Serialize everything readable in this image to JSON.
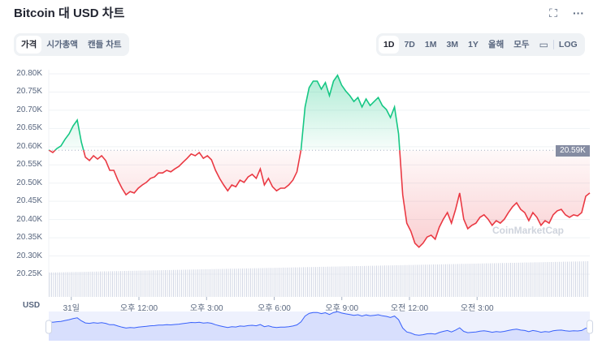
{
  "header": {
    "title": "Bitcoin 대 USD 차트",
    "expand_icon": "fullscreen-icon",
    "more_icon": "more-dots-icon"
  },
  "chart_tabs": [
    {
      "label": "가격",
      "active": true
    },
    {
      "label": "시가총액",
      "active": false
    },
    {
      "label": "캔들 차트",
      "active": false
    }
  ],
  "ranges": [
    {
      "label": "1D",
      "active": true
    },
    {
      "label": "7D"
    },
    {
      "label": "1M"
    },
    {
      "label": "3M"
    },
    {
      "label": "1Y"
    },
    {
      "label": "올해"
    },
    {
      "label": "모두"
    }
  ],
  "calendar_icon": "calendar-icon",
  "log_label": "LOG",
  "currency_label": "USD",
  "watermark": "CoinMarketCap",
  "colors": {
    "up": "#16c784",
    "down": "#ea3943",
    "navigator": "#3861fb",
    "badge": "#858ca2"
  },
  "chart_data": {
    "type": "area",
    "baseline": 20590,
    "baseline_label": "20.59K",
    "ylim": [
      20250,
      20800
    ],
    "y_ticks": [
      "20.80K",
      "20.75K",
      "20.70K",
      "20.65K",
      "20.60K",
      "20.55K",
      "20.50K",
      "20.45K",
      "20.40K",
      "20.35K",
      "20.30K",
      "20.25K"
    ],
    "x_range_hours": [
      8,
      32
    ],
    "x_ticks": [
      {
        "label": "31일",
        "hour": 9
      },
      {
        "label": "오후 12:00",
        "hour": 12
      },
      {
        "label": "오후 3:00",
        "hour": 15
      },
      {
        "label": "오후 6:00",
        "hour": 18
      },
      {
        "label": "오후 9:00",
        "hour": 21
      },
      {
        "label": "오전 12:00",
        "hour": 24
      },
      {
        "label": "오전 3:00",
        "hour": 27
      }
    ],
    "values": [
      20591,
      20584,
      20595,
      20602,
      20620,
      20635,
      20657,
      20673,
      20613,
      20571,
      20562,
      20575,
      20566,
      20575,
      20562,
      20535,
      20535,
      20508,
      20486,
      20468,
      20477,
      20473,
      20486,
      20495,
      20502,
      20513,
      20517,
      20528,
      20528,
      20535,
      20531,
      20539,
      20546,
      20557,
      20568,
      20580,
      20575,
      20584,
      20568,
      20575,
      20564,
      20535,
      20513,
      20495,
      20479,
      20495,
      20490,
      20508,
      20502,
      20517,
      20524,
      20513,
      20539,
      20495,
      20513,
      20490,
      20479,
      20486,
      20486,
      20495,
      20508,
      20531,
      20591,
      20709,
      20762,
      20780,
      20780,
      20758,
      20776,
      20740,
      20780,
      20796,
      20769,
      20753,
      20740,
      20724,
      20735,
      20709,
      20731,
      20713,
      20724,
      20735,
      20713,
      20702,
      20680,
      20709,
      20635,
      20468,
      20390,
      20368,
      20335,
      20324,
      20335,
      20352,
      20357,
      20346,
      20379,
      20401,
      20419,
      20390,
      20428,
      20473,
      20401,
      20375,
      20384,
      20390,
      20406,
      20413,
      20401,
      20384,
      20397,
      20390,
      20401,
      20419,
      20435,
      20446,
      20428,
      20419,
      20397,
      20419,
      20406,
      20384,
      20397,
      20390,
      20413,
      20424,
      20428,
      20413,
      20406,
      20413,
      20410,
      20419,
      20464,
      20473
    ]
  }
}
